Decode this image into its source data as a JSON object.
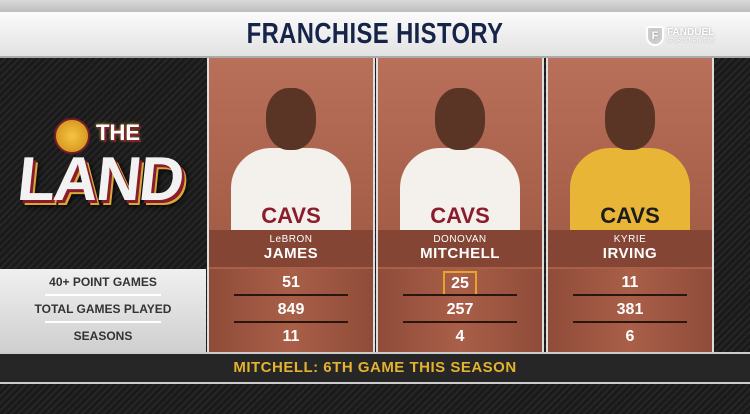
{
  "header": {
    "title": "FRANCHISE HISTORY",
    "network_logo": {
      "line1": "FANDUEL",
      "line2": "SPORTS NETWORK"
    }
  },
  "logo": {
    "small": "THE",
    "big": "LAND"
  },
  "stat_labels": [
    "40+ POINT GAMES",
    "TOTAL GAMES PLAYED",
    "SEASONS"
  ],
  "players": [
    {
      "first": "LeBRON",
      "last": "JAMES",
      "jersey": "CAVS",
      "jersey_color": "#f4f0ec",
      "jersey_text_color": "#8a1c2c",
      "stats": [
        "51",
        "849",
        "11"
      ]
    },
    {
      "first": "DONOVAN",
      "last": "MITCHELL",
      "jersey": "CAVS",
      "jersey_color": "#f4f0ec",
      "jersey_text_color": "#8a1c2c",
      "stats": [
        "25",
        "257",
        "4"
      ],
      "highlighted_stat": "25"
    },
    {
      "first": "KYRIE",
      "last": "IRVING",
      "jersey": "CAVS",
      "jersey_color": "#e8b536",
      "jersey_text_color": "#1c1c1c",
      "stats": [
        "11",
        "381",
        "6"
      ]
    }
  ],
  "footer": {
    "text": "MITCHELL: 6TH GAME THIS SEASON"
  },
  "colors": {
    "title": "#16244a",
    "panel": "#a95f48",
    "highlight": "#e5a52b",
    "footer_text": "#e3b22e"
  }
}
